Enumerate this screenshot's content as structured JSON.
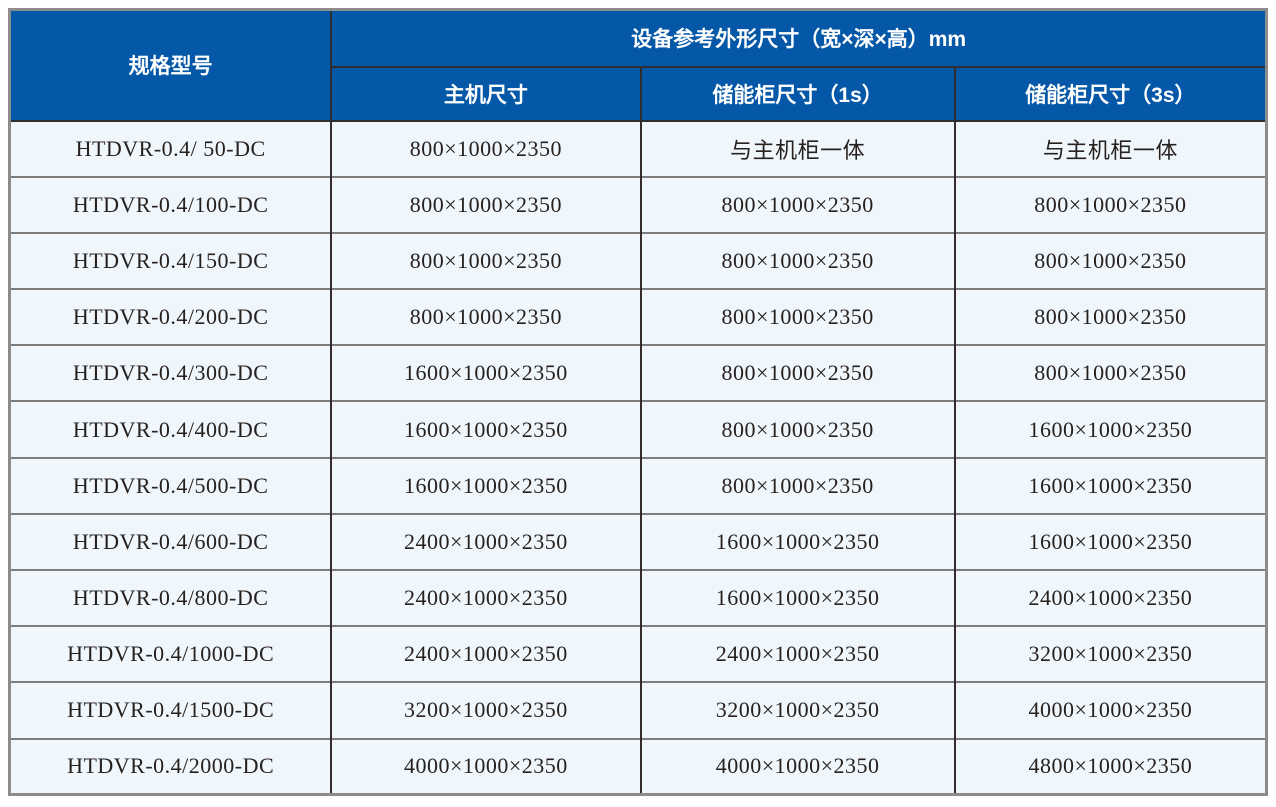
{
  "table": {
    "header": {
      "spec_model": "规格型号",
      "dimensions_group": "设备参考外形尺寸（宽×深×高）mm",
      "host_size": "主机尺寸",
      "storage_1s": "储能柜尺寸（1s）",
      "storage_3s": "储能柜尺寸（3s）"
    },
    "rows": [
      {
        "model": "HTDVR-0.4/ 50-DC",
        "host": "800×1000×2350",
        "cab1s": "与主机柜一体",
        "cab3s": "与主机柜一体"
      },
      {
        "model": "HTDVR-0.4/100-DC",
        "host": "800×1000×2350",
        "cab1s": "800×1000×2350",
        "cab3s": "800×1000×2350"
      },
      {
        "model": "HTDVR-0.4/150-DC",
        "host": "800×1000×2350",
        "cab1s": "800×1000×2350",
        "cab3s": "800×1000×2350"
      },
      {
        "model": "HTDVR-0.4/200-DC",
        "host": "800×1000×2350",
        "cab1s": "800×1000×2350",
        "cab3s": "800×1000×2350"
      },
      {
        "model": "HTDVR-0.4/300-DC",
        "host": "1600×1000×2350",
        "cab1s": "800×1000×2350",
        "cab3s": "800×1000×2350"
      },
      {
        "model": "HTDVR-0.4/400-DC",
        "host": "1600×1000×2350",
        "cab1s": "800×1000×2350",
        "cab3s": "1600×1000×2350"
      },
      {
        "model": "HTDVR-0.4/500-DC",
        "host": "1600×1000×2350",
        "cab1s": "800×1000×2350",
        "cab3s": "1600×1000×2350"
      },
      {
        "model": "HTDVR-0.4/600-DC",
        "host": "2400×1000×2350",
        "cab1s": "1600×1000×2350",
        "cab3s": "1600×1000×2350"
      },
      {
        "model": "HTDVR-0.4/800-DC",
        "host": "2400×1000×2350",
        "cab1s": "1600×1000×2350",
        "cab3s": "2400×1000×2350"
      },
      {
        "model": "HTDVR-0.4/1000-DC",
        "host": "2400×1000×2350",
        "cab1s": "2400×1000×2350",
        "cab3s": "3200×1000×2350"
      },
      {
        "model": "HTDVR-0.4/1500-DC",
        "host": "3200×1000×2350",
        "cab1s": "3200×1000×2350",
        "cab3s": "4000×1000×2350"
      },
      {
        "model": "HTDVR-0.4/2000-DC",
        "host": "4000×1000×2350",
        "cab1s": "4000×1000×2350",
        "cab3s": "4800×1000×2350"
      }
    ]
  },
  "colors": {
    "header_bg": "#0558a7",
    "header_text": "#ffffff",
    "row_bg": "#f0f7fc",
    "body_text": "#26211f",
    "vertical_border": "#352b2d",
    "horizontal_border": "#7d7d7d",
    "outer_border": "#8c8c8c"
  }
}
